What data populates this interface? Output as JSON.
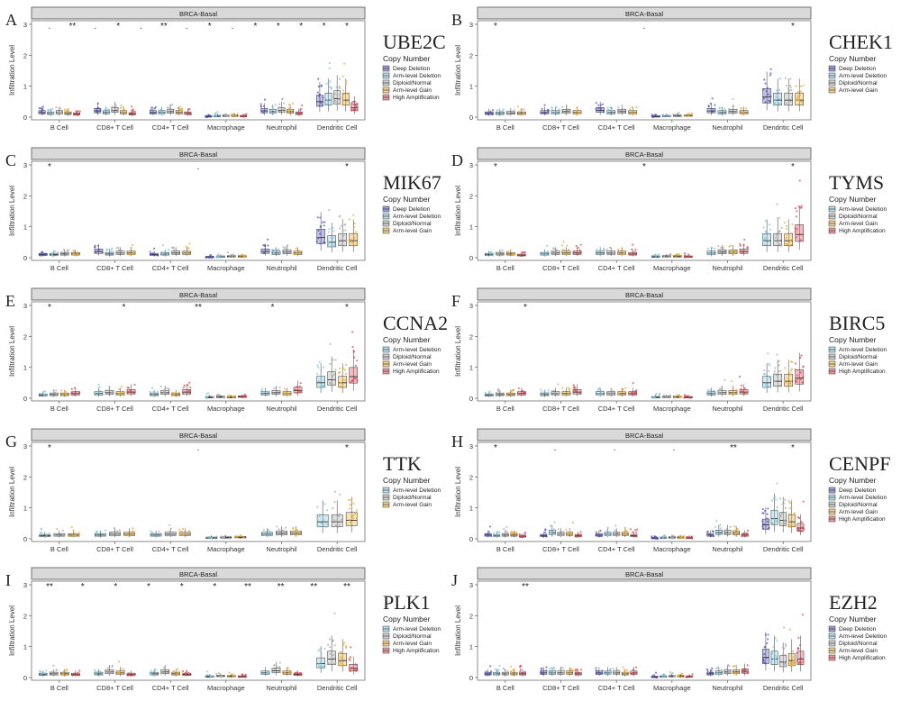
{
  "figure": {
    "strip_title": "BRCA-Basal",
    "ylabel": "Infiltration Level",
    "legend_title": "Copy Number",
    "cell_types": [
      "B Cell",
      "CD8+ T Cell",
      "CD4+ T Cell",
      "Macrophage",
      "Neutrophil",
      "Dendritic Cell"
    ],
    "yticks": [
      0,
      1,
      2,
      3
    ],
    "colors": {
      "Deep Deletion": "#4f4fb8",
      "Arm-level Deletion": "#7ec3d8",
      "Diploid/Normal": "#a8a8a8",
      "Arm-level Gain": "#e7a92f",
      "High Amplification": "#d9454f"
    }
  },
  "chart_data": [
    {
      "type": "box",
      "letter": "A",
      "gene": "UBE2C",
      "title": "BRCA-Basal",
      "xlabel": "",
      "ylabel": "Infiltration Level",
      "ylim": [
        0,
        3
      ],
      "categories": [
        "B Cell",
        "CD8+ T Cell",
        "CD4+ T Cell",
        "Macrophage",
        "Neutrophil",
        "Dendritic Cell"
      ],
      "legend": [
        "Deep Deletion",
        "Arm-level Deletion",
        "Diploid/Normal",
        "Arm-level Gain",
        "High Amplification"
      ],
      "series": [
        {
          "name": "Deep Deletion",
          "medians": [
            0.15,
            0.2,
            0.15,
            0.02,
            0.2,
            0.5
          ]
        },
        {
          "name": "Arm-level Deletion",
          "medians": [
            0.12,
            0.15,
            0.15,
            0.03,
            0.18,
            0.55
          ]
        },
        {
          "name": "Diploid/Normal",
          "medians": [
            0.15,
            0.22,
            0.18,
            0.04,
            0.22,
            0.6
          ]
        },
        {
          "name": "Arm-level Gain",
          "medians": [
            0.12,
            0.15,
            0.15,
            0.04,
            0.18,
            0.55
          ]
        },
        {
          "name": "High Amplification",
          "medians": [
            0.1,
            0.1,
            0.12,
            0.03,
            0.12,
            0.3
          ]
        }
      ],
      "significance": [
        ".",
        "**",
        ".",
        "*",
        ".",
        "**",
        ".",
        "*",
        ".",
        "*",
        "*",
        "*",
        "*",
        "*"
      ]
    },
    {
      "type": "box",
      "letter": "B",
      "gene": "CHEK1",
      "title": "BRCA-Basal",
      "xlabel": "",
      "ylabel": "Infiltration Level",
      "ylim": [
        0,
        3
      ],
      "categories": [
        "B Cell",
        "CD8+ T Cell",
        "CD4+ T Cell",
        "Macrophage",
        "Neutrophil",
        "Dendritic Cell"
      ],
      "legend": [
        "Deep Deletion",
        "Arm-level Deletion",
        "Diploid/Normal",
        "Arm-level Gain"
      ],
      "series": [
        {
          "name": "Deep Deletion",
          "medians": [
            0.12,
            0.15,
            0.22,
            0.02,
            0.2,
            0.65
          ]
        },
        {
          "name": "Arm-level Deletion",
          "medians": [
            0.12,
            0.15,
            0.15,
            0.03,
            0.15,
            0.55
          ]
        },
        {
          "name": "Diploid/Normal",
          "medians": [
            0.13,
            0.18,
            0.18,
            0.04,
            0.18,
            0.55
          ]
        },
        {
          "name": "Arm-level Gain",
          "medians": [
            0.12,
            0.15,
            0.15,
            0.05,
            0.15,
            0.55
          ]
        }
      ],
      "significance": [
        "*",
        ".",
        "*"
      ]
    },
    {
      "type": "box",
      "letter": "C",
      "gene": "MIK67",
      "title": "BRCA-Basal",
      "xlabel": "",
      "ylabel": "Infiltration Level",
      "ylim": [
        0,
        3
      ],
      "categories": [
        "B Cell",
        "CD8+ T Cell",
        "CD4+ T Cell",
        "Macrophage",
        "Neutrophil",
        "Dendritic Cell"
      ],
      "legend": [
        "Deep Deletion",
        "Arm-level Deletion",
        "Diploid/Normal",
        "Arm-level Gain"
      ],
      "series": [
        {
          "name": "Deep Deletion",
          "medians": [
            0.1,
            0.2,
            0.1,
            0.02,
            0.2,
            0.65
          ]
        },
        {
          "name": "Arm-level Deletion",
          "medians": [
            0.1,
            0.12,
            0.12,
            0.03,
            0.15,
            0.5
          ]
        },
        {
          "name": "Diploid/Normal",
          "medians": [
            0.12,
            0.15,
            0.15,
            0.04,
            0.18,
            0.55
          ]
        },
        {
          "name": "Arm-level Gain",
          "medians": [
            0.12,
            0.15,
            0.15,
            0.04,
            0.15,
            0.55
          ]
        }
      ],
      "significance": [
        "*",
        ".",
        "*"
      ]
    },
    {
      "type": "box",
      "letter": "D",
      "gene": "TYMS",
      "title": "BRCA-Basal",
      "xlabel": "",
      "ylabel": "Infiltration Level",
      "ylim": [
        0,
        3
      ],
      "categories": [
        "B Cell",
        "CD8+ T Cell",
        "CD4+ T Cell",
        "Macrophage",
        "Neutrophil",
        "Dendritic Cell"
      ],
      "legend": [
        "Arm-level Deletion",
        "Diploid/Normal",
        "Arm-level Gain",
        "High Amplification"
      ],
      "series": [
        {
          "name": "Arm-level Deletion",
          "medians": [
            0.1,
            0.12,
            0.15,
            0.03,
            0.15,
            0.55
          ]
        },
        {
          "name": "Diploid/Normal",
          "medians": [
            0.12,
            0.15,
            0.15,
            0.04,
            0.18,
            0.55
          ]
        },
        {
          "name": "Arm-level Gain",
          "medians": [
            0.12,
            0.15,
            0.15,
            0.04,
            0.18,
            0.55
          ]
        },
        {
          "name": "High Amplification",
          "medians": [
            0.08,
            0.15,
            0.12,
            0.03,
            0.2,
            0.75
          ]
        }
      ],
      "significance": [
        "*",
        "*",
        "*"
      ]
    },
    {
      "type": "box",
      "letter": "E",
      "gene": "CCNA2",
      "title": "BRCA-Basal",
      "xlabel": "",
      "ylabel": "Infiltration Level",
      "ylim": [
        0,
        3
      ],
      "categories": [
        "B Cell",
        "CD8+ T Cell",
        "CD4+ T Cell",
        "Macrophage",
        "Neutrophil",
        "Dendritic Cell"
      ],
      "legend": [
        "Arm-level Deletion",
        "Diploid/Normal",
        "Arm-level Gain",
        "High Amplification"
      ],
      "series": [
        {
          "name": "Arm-level Deletion",
          "medians": [
            0.1,
            0.15,
            0.12,
            0.03,
            0.15,
            0.5
          ]
        },
        {
          "name": "Diploid/Normal",
          "medians": [
            0.12,
            0.18,
            0.18,
            0.04,
            0.18,
            0.6
          ]
        },
        {
          "name": "Arm-level Gain",
          "medians": [
            0.12,
            0.15,
            0.12,
            0.03,
            0.15,
            0.5
          ]
        },
        {
          "name": "High Amplification",
          "medians": [
            0.15,
            0.2,
            0.2,
            0.05,
            0.25,
            0.7
          ]
        }
      ],
      "significance": [
        "*",
        "*",
        "**",
        "*",
        "*"
      ]
    },
    {
      "type": "box",
      "letter": "F",
      "gene": "BIRC5",
      "title": "BRCA-Basal",
      "xlabel": "",
      "ylabel": "Infiltration Level",
      "ylim": [
        0,
        3
      ],
      "categories": [
        "B Cell",
        "CD8+ T Cell",
        "CD4+ T Cell",
        "Macrophage",
        "Neutrophil",
        "Dendritic Cell"
      ],
      "legend": [
        "Arm-level Deletion",
        "Diploid/Normal",
        "Arm-level Gain",
        "High Amplification"
      ],
      "series": [
        {
          "name": "Arm-level Deletion",
          "medians": [
            0.1,
            0.12,
            0.15,
            0.03,
            0.15,
            0.5
          ]
        },
        {
          "name": "Diploid/Normal",
          "medians": [
            0.12,
            0.15,
            0.15,
            0.04,
            0.18,
            0.55
          ]
        },
        {
          "name": "Arm-level Gain",
          "medians": [
            0.12,
            0.15,
            0.15,
            0.04,
            0.18,
            0.55
          ]
        },
        {
          "name": "High Amplification",
          "medians": [
            0.15,
            0.2,
            0.15,
            0.03,
            0.2,
            0.65
          ]
        }
      ],
      "significance": [
        "*"
      ]
    },
    {
      "type": "box",
      "letter": "G",
      "gene": "TTK",
      "title": "BRCA-Basal",
      "xlabel": "",
      "ylabel": "Infiltration Level",
      "ylim": [
        0,
        3
      ],
      "categories": [
        "B Cell",
        "CD8+ T Cell",
        "CD4+ T Cell",
        "Macrophage",
        "Neutrophil",
        "Dendritic Cell"
      ],
      "legend": [
        "Arm-level Deletion",
        "Diploid/Normal",
        "Arm-level Gain"
      ],
      "series": [
        {
          "name": "Arm-level Deletion",
          "medians": [
            0.1,
            0.12,
            0.12,
            0.03,
            0.15,
            0.55
          ]
        },
        {
          "name": "Diploid/Normal",
          "medians": [
            0.12,
            0.15,
            0.15,
            0.04,
            0.18,
            0.55
          ]
        },
        {
          "name": "Arm-level Gain",
          "medians": [
            0.12,
            0.15,
            0.15,
            0.05,
            0.18,
            0.6
          ]
        }
      ],
      "significance": [
        "*",
        ".",
        "*"
      ]
    },
    {
      "type": "box",
      "letter": "H",
      "gene": "CENPF",
      "title": "BRCA-Basal",
      "xlabel": "",
      "ylabel": "Infiltration Level",
      "ylim": [
        0,
        3
      ],
      "categories": [
        "B Cell",
        "CD8+ T Cell",
        "CD4+ T Cell",
        "Macrophage",
        "Neutrophil",
        "Dendritic Cell"
      ],
      "legend": [
        "Deep Deletion",
        "Arm-level Deletion",
        "Diploid/Normal",
        "Arm-level Gain",
        "High Amplification"
      ],
      "series": [
        {
          "name": "Deep Deletion",
          "medians": [
            0.12,
            0.1,
            0.12,
            0.02,
            0.12,
            0.45
          ]
        },
        {
          "name": "Arm-level Deletion",
          "medians": [
            0.1,
            0.2,
            0.15,
            0.03,
            0.2,
            0.65
          ]
        },
        {
          "name": "Diploid/Normal",
          "medians": [
            0.12,
            0.15,
            0.15,
            0.04,
            0.2,
            0.6
          ]
        },
        {
          "name": "Arm-level Gain",
          "medians": [
            0.12,
            0.15,
            0.15,
            0.04,
            0.18,
            0.55
          ]
        },
        {
          "name": "High Amplification",
          "medians": [
            0.08,
            0.1,
            0.1,
            0.03,
            0.12,
            0.35
          ]
        }
      ],
      "significance": [
        "*",
        ".",
        ".",
        ".",
        "**",
        "*"
      ]
    },
    {
      "type": "box",
      "letter": "I",
      "gene": "PLK1",
      "title": "BRCA-Basal",
      "xlabel": "",
      "ylabel": "Infiltration Level",
      "ylim": [
        0,
        3
      ],
      "categories": [
        "B Cell",
        "CD8+ T Cell",
        "CD4+ T Cell",
        "Macrophage",
        "Neutrophil",
        "Dendritic Cell"
      ],
      "legend": [
        "Arm-level Deletion",
        "Diploid/Normal",
        "Arm-level Gain",
        "High Amplification"
      ],
      "series": [
        {
          "name": "Arm-level Deletion",
          "medians": [
            0.1,
            0.12,
            0.12,
            0.03,
            0.15,
            0.45
          ]
        },
        {
          "name": "Diploid/Normal",
          "medians": [
            0.12,
            0.18,
            0.18,
            0.05,
            0.22,
            0.6
          ]
        },
        {
          "name": "Arm-level Gain",
          "medians": [
            0.12,
            0.15,
            0.12,
            0.04,
            0.15,
            0.55
          ]
        },
        {
          "name": "High Amplification",
          "medians": [
            0.1,
            0.1,
            0.1,
            0.03,
            0.1,
            0.3
          ]
        }
      ],
      "significance": [
        "**",
        "*",
        "*",
        "*",
        "*",
        "*",
        "**",
        "**",
        "**",
        "**"
      ]
    },
    {
      "type": "box",
      "letter": "J",
      "gene": "EZH2",
      "title": "BRCA-Basal",
      "xlabel": "",
      "ylabel": "Infiltration Level",
      "ylim": [
        0,
        3
      ],
      "categories": [
        "B Cell",
        "CD8+ T Cell",
        "CD4+ T Cell",
        "Macrophage",
        "Neutrophil",
        "Dendritic Cell"
      ],
      "legend": [
        "Deep Deletion",
        "Arm-level Deletion",
        "Diploid/Normal",
        "Arm-level Gain",
        "High Amplification"
      ],
      "series": [
        {
          "name": "Deep Deletion",
          "medians": [
            0.12,
            0.15,
            0.15,
            0.02,
            0.12,
            0.65
          ]
        },
        {
          "name": "Arm-level Deletion",
          "medians": [
            0.12,
            0.15,
            0.15,
            0.03,
            0.15,
            0.6
          ]
        },
        {
          "name": "Diploid/Normal",
          "medians": [
            0.12,
            0.15,
            0.15,
            0.04,
            0.18,
            0.5
          ]
        },
        {
          "name": "Arm-level Gain",
          "medians": [
            0.12,
            0.15,
            0.12,
            0.04,
            0.18,
            0.55
          ]
        },
        {
          "name": "High Amplification",
          "medians": [
            0.12,
            0.12,
            0.15,
            0.03,
            0.2,
            0.6
          ]
        }
      ],
      "significance": [
        "**"
      ]
    }
  ]
}
